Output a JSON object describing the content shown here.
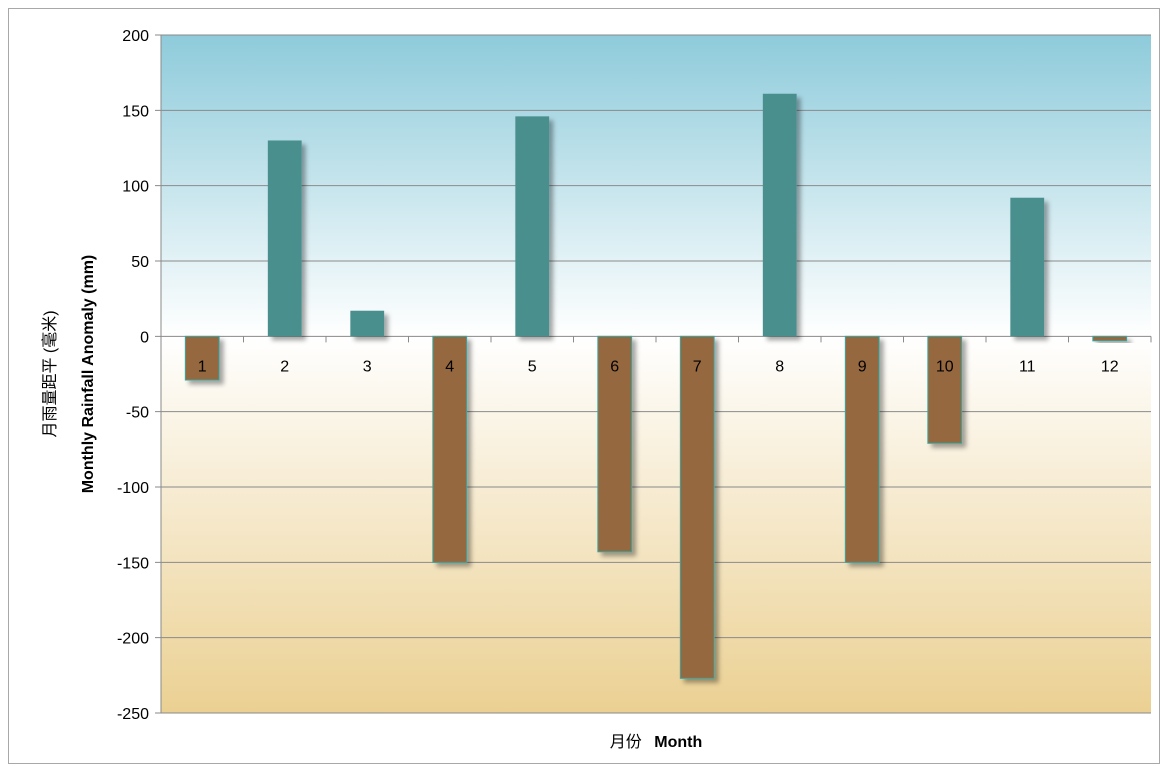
{
  "chart_data": {
    "type": "bar",
    "categories": [
      "1",
      "2",
      "3",
      "4",
      "5",
      "6",
      "7",
      "8",
      "9",
      "10",
      "11",
      "12"
    ],
    "values": [
      -29,
      130,
      17,
      -150,
      146,
      -143,
      -227,
      161,
      -150,
      -71,
      92,
      -3
    ],
    "xlabel_cn": "月份",
    "xlabel_en": "Month",
    "ylabel_cn": "月雨量距平  (毫米)",
    "ylabel_en": "Monthly Rainfall Anomaly (mm)",
    "ylim": [
      -250,
      200
    ],
    "yticks": [
      200,
      150,
      100,
      50,
      0,
      -50,
      -100,
      -150,
      -200,
      -250
    ],
    "grid": true,
    "colors": {
      "positive": "#4a8f8d",
      "negative": "#96683f",
      "negative_outline": "#3aa6a0",
      "bg_top": "#8ecbdb",
      "bg_mid": "#ffffff",
      "bg_bottom": "#ebd092",
      "grid": "#8a8a8a"
    }
  }
}
